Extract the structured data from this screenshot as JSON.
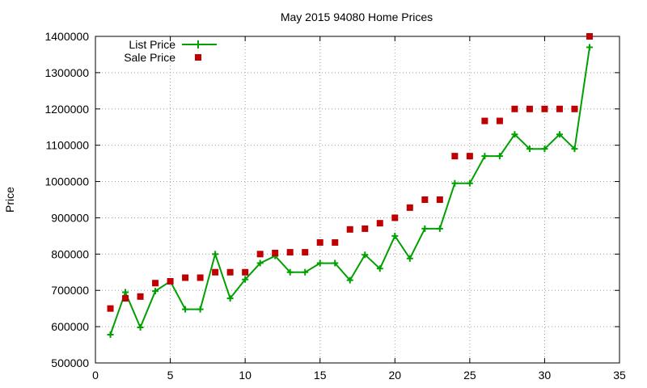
{
  "chart_data": {
    "type": "line",
    "title": "May 2015 94080 Home Prices",
    "xlabel": "",
    "ylabel": "Price",
    "xlim": [
      0,
      35
    ],
    "ylim": [
      500000,
      1400000
    ],
    "xticks": [
      0,
      5,
      10,
      15,
      20,
      25,
      30,
      35
    ],
    "yticks": [
      500000,
      600000,
      700000,
      800000,
      900000,
      1000000,
      1100000,
      1200000,
      1300000,
      1400000
    ],
    "xtick_labels": [
      "0",
      "5",
      "10",
      "15",
      "20",
      "25",
      "30",
      "35"
    ],
    "ytick_labels": [
      "500000",
      "600000",
      "700000",
      "800000",
      "900000",
      "1000000",
      "1100000",
      "1200000",
      "1300000",
      "1400000"
    ],
    "grid": true,
    "legend_position": "top-left",
    "series": [
      {
        "name": "List Price",
        "style": "line with plus markers",
        "color": "#00a000",
        "x": [
          1,
          2,
          3,
          4,
          5,
          6,
          7,
          8,
          9,
          10,
          11,
          12,
          13,
          14,
          15,
          16,
          17,
          18,
          19,
          20,
          21,
          22,
          23,
          24,
          25,
          26,
          27,
          28,
          29,
          30,
          31,
          32,
          33
        ],
        "values": [
          578000,
          695000,
          598000,
          698000,
          725000,
          648000,
          648000,
          800000,
          678000,
          730000,
          775000,
          795000,
          750000,
          750000,
          775000,
          775000,
          728000,
          798000,
          760000,
          850000,
          788000,
          870000,
          870000,
          995000,
          995000,
          1070000,
          1070000,
          1130000,
          1090000,
          1090000,
          1130000,
          1090000,
          1370000
        ]
      },
      {
        "name": "Sale Price",
        "style": "square markers",
        "color": "#c00000",
        "x": [
          1,
          2,
          3,
          4,
          5,
          6,
          7,
          8,
          9,
          10,
          11,
          12,
          13,
          14,
          15,
          16,
          17,
          18,
          19,
          20,
          21,
          22,
          23,
          24,
          25,
          26,
          27,
          28,
          29,
          30,
          31,
          32,
          33
        ],
        "values": [
          650000,
          678000,
          683000,
          720000,
          725000,
          735000,
          735000,
          750000,
          750000,
          750000,
          800000,
          803000,
          805000,
          805000,
          832000,
          832000,
          868000,
          870000,
          885000,
          900000,
          928000,
          950000,
          950000,
          1070000,
          1070000,
          1167000,
          1167000,
          1200000,
          1200000,
          1200000,
          1200000,
          1200000,
          1400000
        ]
      }
    ]
  }
}
